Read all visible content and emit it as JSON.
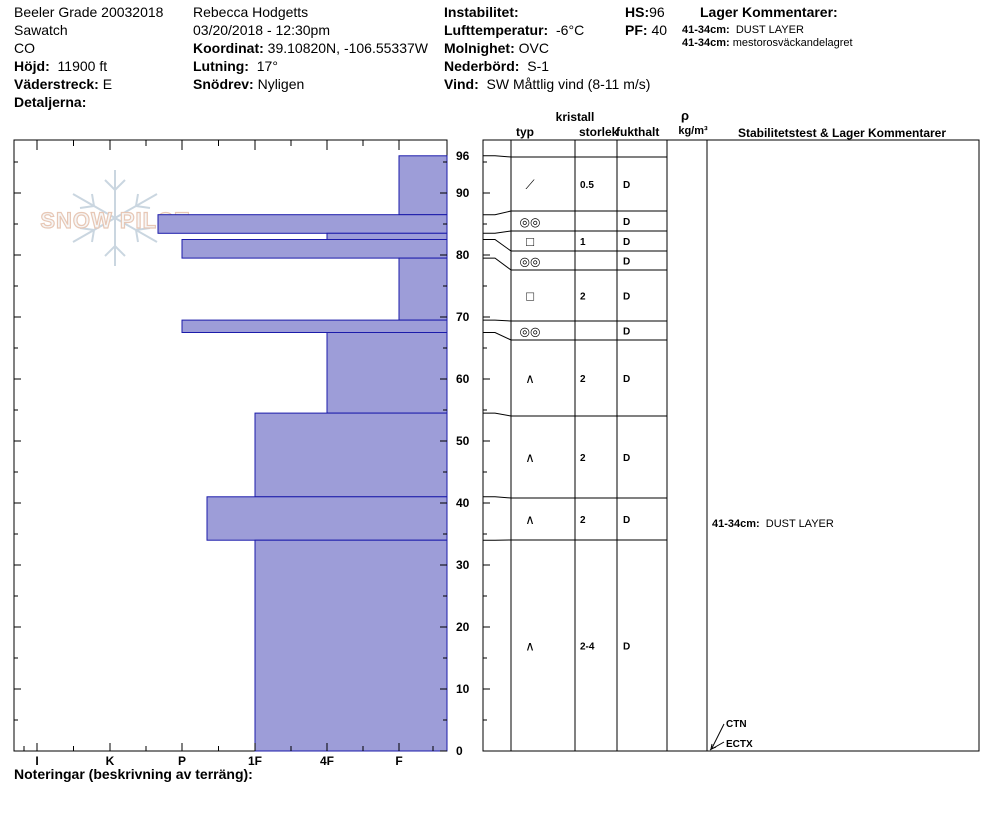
{
  "header": {
    "col1": {
      "title": "Beeler Grade 20032018",
      "range": "Sawatch",
      "state": "CO",
      "elevation_label": "Höjd:",
      "elevation_value": "11900 ft",
      "aspect_label": "Väderstreck:",
      "aspect_value": "E",
      "details_label": "Detaljerna:"
    },
    "col2": {
      "observer": "Rebecca Hodgetts",
      "datetime": "03/20/2018 - 12:30pm",
      "coord_label": "Koordinat:",
      "coord_value": "39.10820N, -106.55337W",
      "slope_label": "Lutning:",
      "slope_value": "17°",
      "drift_label": "Snödrev:",
      "drift_value": "Nyligen"
    },
    "col3": {
      "instability_label": "Instabilitet:",
      "airtemp_label": "Lufttemperatur:",
      "airtemp_value": "-6°C",
      "sky_label": "Molnighet:",
      "sky_value": "OVC",
      "precip_label": "Nederbörd:",
      "precip_value": "S-1",
      "wind_label": "Vind:",
      "wind_value": "SW  Måttlig vind (8-11 m/s)"
    },
    "col4": {
      "hs_label": "HS:",
      "hs_value": "96",
      "pf_label": "PF:",
      "pf_value": "40"
    },
    "layer_comments": {
      "title": "Lager Kommentarer:",
      "items": [
        {
          "range": "41-34cm:",
          "text": "DUST LAYER"
        },
        {
          "range": "41-34cm:",
          "text": "mestorosväckandelagret"
        }
      ]
    }
  },
  "table_headers": {
    "crystal": "kristall",
    "type": "typ",
    "size": "storlek",
    "moisture": "fukthalt",
    "rho": "ρ",
    "density_unit": "kg/m³",
    "stability": "Stabilitetstest & Lager Kommentarer"
  },
  "layer_symbols": {
    "facets": "□",
    "depth_hoar": "∧",
    "melt_freeze": "◎◎",
    "decomposed": "⟋"
  },
  "stability_comment": {
    "range": "41-34cm:",
    "text": "DUST LAYER"
  },
  "tests": [
    "CTN",
    "ECTX"
  ],
  "notes_label": "Noteringar (beskrivning av terräng):",
  "watermark": "SNOW PILOT",
  "colors": {
    "bar_fill": "#9d9dd8",
    "bar_stroke": "#1b1baa"
  },
  "chart_data": {
    "type": "bar",
    "orientation": "horizontal",
    "y_axis": {
      "label": "",
      "range": [
        0,
        96
      ],
      "ticks": [
        0,
        10,
        20,
        30,
        40,
        50,
        60,
        70,
        80,
        90,
        96
      ]
    },
    "x_axis": {
      "categories": [
        "I",
        "K",
        "P",
        "1F",
        "4F",
        "F"
      ],
      "direction": "hardness decreases to the right"
    },
    "layers": [
      {
        "top": 96,
        "bottom": 86.5,
        "hardness": "F",
        "grain_type": "decomposed",
        "grain_size": "0.5",
        "moisture": "D"
      },
      {
        "top": 86.5,
        "bottom": 83.5,
        "hardness": "K+",
        "grain_type": "melt_freeze",
        "grain_size": "",
        "moisture": "D"
      },
      {
        "top": 83.5,
        "bottom": 82.5,
        "hardness": "4F",
        "grain_type": "facets",
        "grain_size": "1",
        "moisture": "D"
      },
      {
        "top": 82.5,
        "bottom": 79.5,
        "hardness": "P",
        "grain_type": "melt_freeze",
        "grain_size": "",
        "moisture": "D"
      },
      {
        "top": 79.5,
        "bottom": 69.5,
        "hardness": "F",
        "grain_type": "facets",
        "grain_size": "2",
        "moisture": "D"
      },
      {
        "top": 69.5,
        "bottom": 67.5,
        "hardness": "P",
        "grain_type": "melt_freeze",
        "grain_size": "",
        "moisture": "D"
      },
      {
        "top": 67.5,
        "bottom": 54.5,
        "hardness": "4F",
        "grain_type": "depth_hoar",
        "grain_size": "2",
        "moisture": "D"
      },
      {
        "top": 54.5,
        "bottom": 41,
        "hardness": "1F",
        "grain_type": "depth_hoar",
        "grain_size": "2",
        "moisture": "D"
      },
      {
        "top": 41,
        "bottom": 34,
        "hardness": "P+",
        "grain_type": "depth_hoar",
        "grain_size": "2",
        "moisture": "D"
      },
      {
        "top": 34,
        "bottom": 0,
        "hardness": "1F",
        "grain_type": "depth_hoar",
        "grain_size": "2-4",
        "moisture": "D"
      }
    ]
  }
}
